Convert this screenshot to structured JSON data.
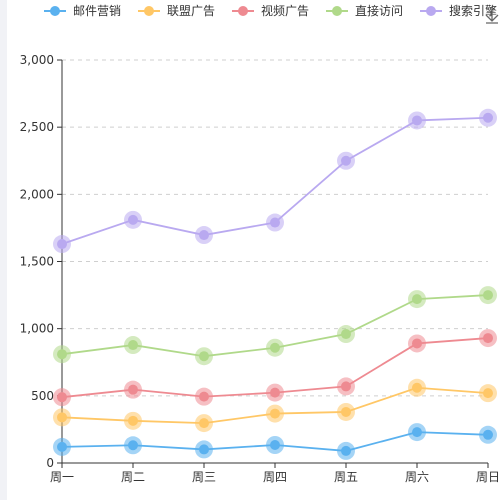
{
  "chart_data": {
    "type": "line",
    "categories": [
      "周一",
      "周二",
      "周三",
      "周四",
      "周五",
      "周六",
      "周日"
    ],
    "series": [
      {
        "name": "邮件营销",
        "color": "#5ab1ef",
        "values": [
          120,
          132,
          101,
          134,
          90,
          230,
          210
        ]
      },
      {
        "name": "联盟广告",
        "color": "#ffc766",
        "values": [
          340,
          314,
          297,
          368,
          380,
          560,
          520
        ]
      },
      {
        "name": "视频广告",
        "color": "#ee8a91",
        "values": [
          490,
          546,
          494,
          524,
          570,
          890,
          930
        ]
      },
      {
        "name": "直接访问",
        "color": "#b0d98a",
        "values": [
          810,
          878,
          795,
          858,
          960,
          1220,
          1250
        ]
      },
      {
        "name": "搜索引擎",
        "color": "#b9a9f0",
        "values": [
          1630,
          1810,
          1697,
          1790,
          2250,
          2550,
          2570
        ]
      }
    ],
    "ylim": [
      0,
      3000
    ],
    "yticks": [
      0,
      500,
      1000,
      1500,
      2000,
      2500,
      3000
    ],
    "ytick_labels": [
      "0",
      "500",
      "1,000",
      "1,500",
      "2,000",
      "2,500",
      "3,000"
    ],
    "stacked": true,
    "grid": true,
    "legend": "top",
    "toolbox": {
      "download_icon": "download-icon"
    }
  }
}
